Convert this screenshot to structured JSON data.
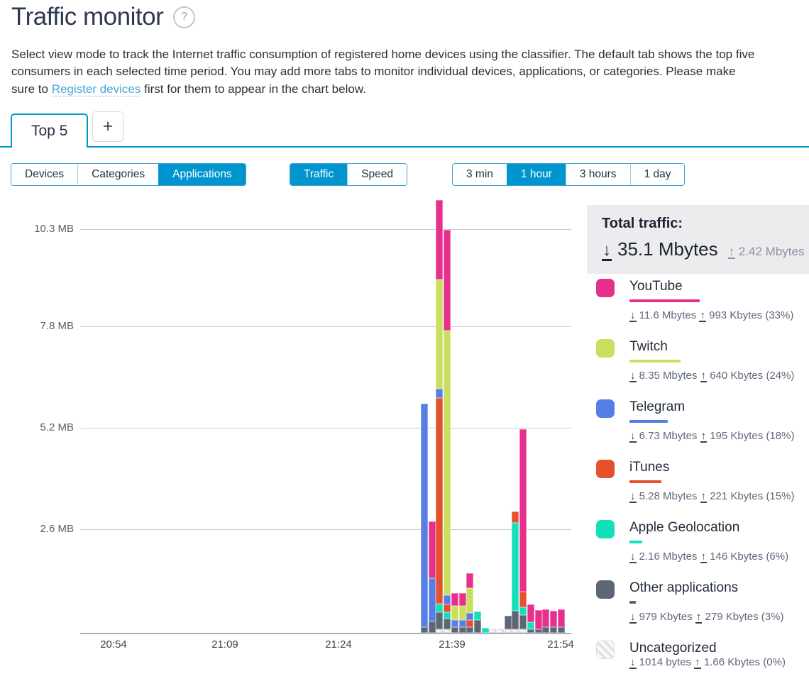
{
  "header": {
    "title": "Traffic monitor",
    "help_icon": "?"
  },
  "intro": {
    "before_link": "Select view mode to track the Internet traffic consumption of registered home devices using the classifier. The default tab shows the top five consumers in each selected time period. You may add more tabs to monitor individual devices, applications, or categories. Please make sure to ",
    "link_text": "Register devices",
    "after_link": " first for them to appear in the chart below."
  },
  "tabs": {
    "active_label": "Top 5",
    "add_label": "+"
  },
  "controls": {
    "view_modes": {
      "options": [
        "Devices",
        "Categories",
        "Applications"
      ],
      "selected": "Applications"
    },
    "metric": {
      "options": [
        "Traffic",
        "Speed"
      ],
      "selected": "Traffic"
    },
    "period": {
      "options": [
        "3 min",
        "1 hour",
        "3 hours",
        "1 day"
      ],
      "selected": "1 hour"
    }
  },
  "totals": {
    "label": "Total traffic:",
    "download": "35.1 Mbytes",
    "upload": "2.42 Mbytes"
  },
  "legend": [
    {
      "name": "YouTube",
      "color": "#e7308c",
      "download": "11.6 Mbytes",
      "upload": "993 Kbytes",
      "share": "(33%)",
      "share_pct": 33
    },
    {
      "name": "Twitch",
      "color": "#c9df5d",
      "download": "8.35 Mbytes",
      "upload": "640 Kbytes",
      "share": "(24%)",
      "share_pct": 24
    },
    {
      "name": "Telegram",
      "color": "#567ee3",
      "download": "6.73 Mbytes",
      "upload": "195 Kbytes",
      "share": "(18%)",
      "share_pct": 18
    },
    {
      "name": "iTunes",
      "color": "#e5512c",
      "download": "5.28 Mbytes",
      "upload": "221 Kbytes",
      "share": "(15%)",
      "share_pct": 15
    },
    {
      "name": "Apple Geolocation",
      "color": "#12e0b8",
      "download": "2.16 Mbytes",
      "upload": "146 Kbytes",
      "share": "(6%)",
      "share_pct": 6
    },
    {
      "name": "Other applications",
      "color": "#5d6675",
      "download": "979 Kbytes",
      "upload": "279 Kbytes",
      "share": "(3%)",
      "share_pct": 3
    },
    {
      "name": "Uncategorized",
      "color": "hatch",
      "download": "1014 bytes",
      "upload": "1.66 Kbytes",
      "share": "(0%)",
      "share_pct": 0
    }
  ],
  "chart_data": {
    "type": "bar",
    "stacked": true,
    "unit": "MB",
    "x_ticks": [
      "20:54",
      "21:09",
      "21:24",
      "21:39",
      "21:54"
    ],
    "y_ticks": [
      {
        "label": "10.3 MB",
        "value": 10.3
      },
      {
        "label": "7.8 MB",
        "value": 7.8
      },
      {
        "label": "5.2 MB",
        "value": 5.2
      },
      {
        "label": "2.6 MB",
        "value": 2.6
      }
    ],
    "ylim": [
      0,
      11.2
    ],
    "series_order": [
      "YouTube",
      "Twitch",
      "Telegram",
      "iTunes",
      "Apple Geolocation",
      "Other applications",
      "Uncategorized"
    ],
    "colors": {
      "YouTube": "#e7308c",
      "Twitch": "#c9df5d",
      "Telegram": "#567ee3",
      "iTunes": "#e5512c",
      "Apple Geolocation": "#12e0b8",
      "Other applications": "#5d6675",
      "Uncategorized": "hatch"
    },
    "bars": [
      {
        "time": "21:36",
        "segments": [
          [
            "Telegram",
            5.72
          ],
          [
            "Other applications",
            0.15
          ]
        ]
      },
      {
        "time": "21:37",
        "segments": [
          [
            "YouTube",
            1.45
          ],
          [
            "Telegram",
            1.1
          ],
          [
            "Other applications",
            0.29
          ]
        ]
      },
      {
        "time": "21:38",
        "segments": [
          [
            "YouTube",
            2.03
          ],
          [
            "Twitch",
            2.8
          ],
          [
            "Telegram",
            0.24
          ],
          [
            "iTunes",
            5.27
          ],
          [
            "Apple Geolocation",
            0.22
          ],
          [
            "Other applications",
            0.44
          ],
          [
            "Uncategorized",
            0.09
          ]
        ]
      },
      {
        "time": "21:39",
        "segments": [
          [
            "YouTube",
            2.58
          ],
          [
            "Twitch",
            6.78
          ],
          [
            "Telegram",
            0.24
          ],
          [
            "iTunes",
            0.2
          ],
          [
            "Apple Geolocation",
            0.16
          ],
          [
            "Other applications",
            0.27
          ],
          [
            "Uncategorized",
            0.09
          ]
        ]
      },
      {
        "time": "21:40",
        "segments": [
          [
            "YouTube",
            0.33
          ],
          [
            "Twitch",
            0.37
          ],
          [
            "Telegram",
            0.18
          ],
          [
            "Other applications",
            0.15
          ]
        ]
      },
      {
        "time": "21:41",
        "segments": [
          [
            "YouTube",
            0.33
          ],
          [
            "Twitch",
            0.37
          ],
          [
            "Telegram",
            0.18
          ],
          [
            "Other applications",
            0.15
          ]
        ]
      },
      {
        "time": "21:42",
        "segments": [
          [
            "YouTube",
            0.38
          ],
          [
            "Twitch",
            0.64
          ],
          [
            "Telegram",
            0.18
          ],
          [
            "iTunes",
            0.18
          ],
          [
            "Other applications",
            0.15
          ]
        ]
      },
      {
        "time": "21:43",
        "segments": [
          [
            "Apple Geolocation",
            0.22
          ],
          [
            "Other applications",
            0.33
          ]
        ]
      },
      {
        "time": "21:44",
        "segments": [
          [
            "Apple Geolocation",
            0.13
          ]
        ]
      },
      {
        "time": "21:45",
        "segments": [
          [
            "Uncategorized",
            0.09
          ]
        ]
      },
      {
        "time": "21:46",
        "segments": [
          [
            "Uncategorized",
            0.09
          ]
        ]
      },
      {
        "time": "21:47",
        "segments": [
          [
            "Other applications",
            0.35
          ],
          [
            "Uncategorized",
            0.09
          ]
        ]
      },
      {
        "time": "21:48",
        "segments": [
          [
            "iTunes",
            0.29
          ],
          [
            "Apple Geolocation",
            2.25
          ],
          [
            "Other applications",
            0.48
          ],
          [
            "Uncategorized",
            0.09
          ]
        ]
      },
      {
        "time": "21:49",
        "segments": [
          [
            "YouTube",
            4.16
          ],
          [
            "iTunes",
            0.4
          ],
          [
            "Apple Geolocation",
            0.2
          ],
          [
            "Other applications",
            0.37
          ],
          [
            "Uncategorized",
            0.09
          ]
        ]
      },
      {
        "time": "21:50",
        "segments": [
          [
            "YouTube",
            0.46
          ],
          [
            "Apple Geolocation",
            0.18
          ],
          [
            "Other applications",
            0.09
          ]
        ]
      },
      {
        "time": "21:51",
        "segments": [
          [
            "YouTube",
            0.49
          ],
          [
            "Other applications",
            0.09
          ]
        ]
      },
      {
        "time": "21:52",
        "segments": [
          [
            "YouTube",
            0.46
          ],
          [
            "Other applications",
            0.15
          ]
        ]
      },
      {
        "time": "21:53",
        "segments": [
          [
            "YouTube",
            0.42
          ],
          [
            "Other applications",
            0.15
          ]
        ]
      },
      {
        "time": "21:54",
        "segments": [
          [
            "YouTube",
            0.46
          ],
          [
            "Other applications",
            0.15
          ]
        ]
      }
    ]
  }
}
